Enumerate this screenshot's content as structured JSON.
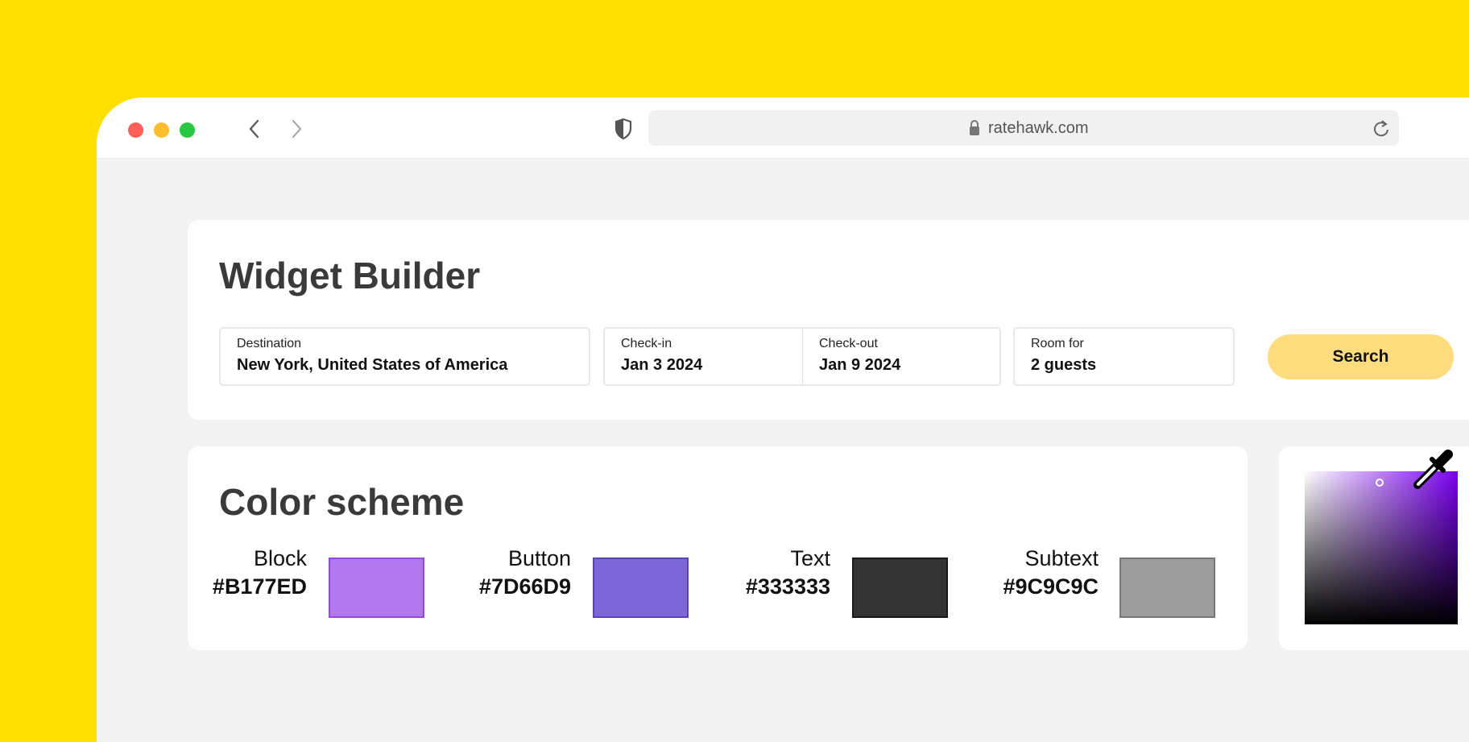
{
  "browser": {
    "url": "ratehawk.com",
    "traffic_lights": [
      "#FF5F57",
      "#FEBC2E",
      "#28C840"
    ]
  },
  "widget_builder": {
    "title": "Widget Builder",
    "fields": [
      {
        "label": "Destination",
        "value": "New York, United States of America"
      },
      {
        "label": "Check-in",
        "value": "Jan 3 2024"
      },
      {
        "label": "Check-out",
        "value": "Jan 9 2024"
      },
      {
        "label": "Room for",
        "value": "2 guests"
      }
    ],
    "search_label": "Search",
    "search_color": "#FFDC7D"
  },
  "color_scheme": {
    "title": "Color scheme",
    "swatches": [
      {
        "name": "Block",
        "hex": "#B177ED"
      },
      {
        "name": "Button",
        "hex": "#7D66D9"
      },
      {
        "name": "Text",
        "hex": "#333333"
      },
      {
        "name": "Subtext",
        "hex": "#9C9C9C"
      }
    ]
  },
  "picker": {
    "hue": "#7A00F0"
  }
}
